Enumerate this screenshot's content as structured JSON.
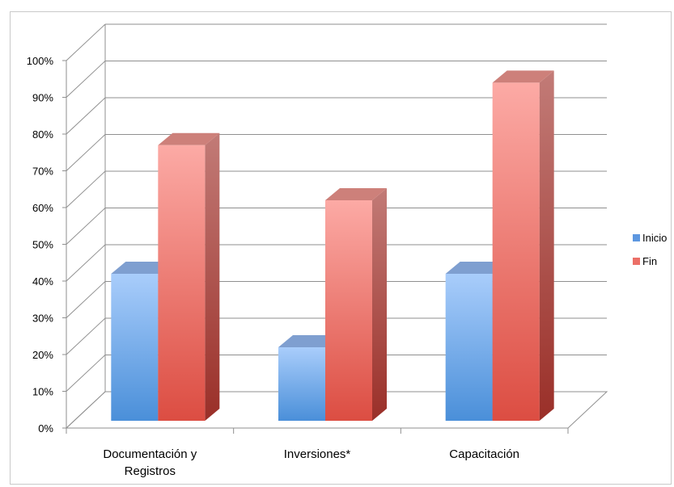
{
  "chart_data": {
    "type": "bar",
    "style": "3d-clustered-column",
    "categories": [
      "Documentación y Registros",
      "Inversiones*",
      "Capacitación"
    ],
    "category_lines": [
      [
        "Documentación y",
        "Registros"
      ],
      [
        "Inversiones*"
      ],
      [
        "Capacitación"
      ]
    ],
    "series": [
      {
        "name": "Inicio",
        "values": [
          40,
          20,
          40
        ],
        "color": "#6fa5ea"
      },
      {
        "name": "Fin",
        "values": [
          75,
          60,
          92
        ],
        "color": "#ef7a72"
      }
    ],
    "y_ticks": [
      "0%",
      "10%",
      "20%",
      "30%",
      "40%",
      "50%",
      "60%",
      "70%",
      "80%",
      "90%",
      "100%"
    ],
    "ylim": [
      0,
      100
    ],
    "grid": true,
    "legend_position": "right"
  }
}
